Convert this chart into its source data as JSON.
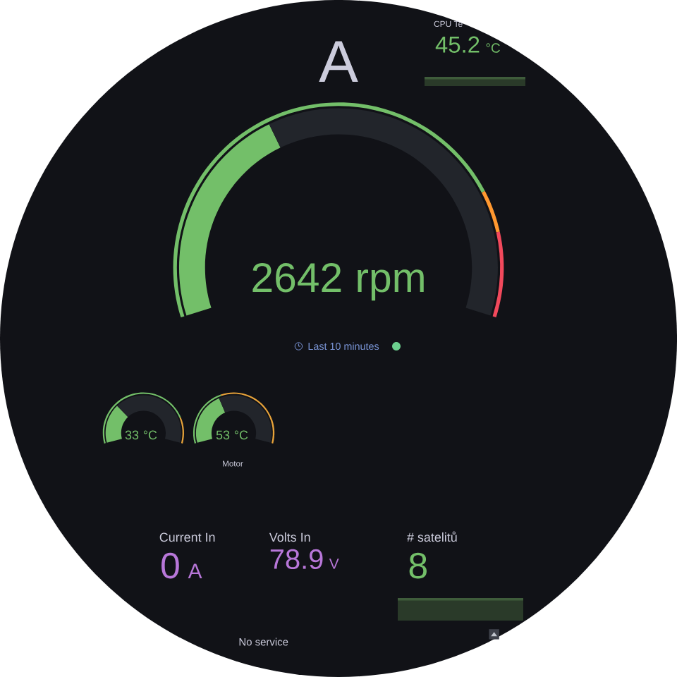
{
  "chart_data": [
    {
      "type": "other",
      "title": "A",
      "values": [
        2642
      ],
      "data_labels": true,
      "color": "#73bf69",
      "annotations": [
        "rpm",
        "Last 10 minutes"
      ]
    },
    {
      "type": "other",
      "title": "CPU Te",
      "values": [
        45.2
      ],
      "data_labels": true,
      "color": "#73bf69",
      "annotations": [
        "°C"
      ]
    },
    {
      "type": "other",
      "values": [
        33
      ],
      "data_labels": true,
      "color": "#73bf69",
      "annotations": [
        "°C"
      ]
    },
    {
      "type": "other",
      "title": "Motor",
      "values": [
        53
      ],
      "data_labels": true,
      "color": "#73bf69",
      "annotations": [
        "°C"
      ]
    },
    {
      "type": "other",
      "title": "Current In",
      "values": [
        0
      ],
      "data_labels": true,
      "color": "#b877d9",
      "annotations": [
        "A"
      ]
    },
    {
      "type": "other",
      "title": "Volts In",
      "values": [
        78.9
      ],
      "data_labels": true,
      "color": "#b877d9",
      "annotations": [
        "V"
      ]
    },
    {
      "type": "other",
      "title": "# satelitů",
      "values": [
        8
      ],
      "data_labels": true,
      "color": "#73bf69"
    },
    {
      "type": "other",
      "annotations": [
        "No service"
      ]
    }
  ]
}
